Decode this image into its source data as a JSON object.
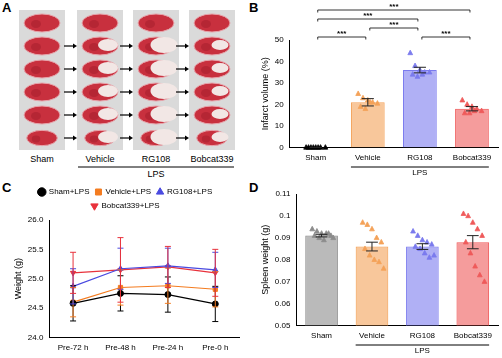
{
  "chart_data": [
    {
      "type": "image",
      "title": "A",
      "categories": [
        "Sham",
        "Vehicle",
        "RG108",
        "Bobcat339"
      ],
      "group_label": {
        "label": "LPS",
        "categories": [
          "Vehicle",
          "RG108",
          "Bobcat339"
        ]
      }
    },
    {
      "type": "bar",
      "title": "B",
      "categories": [
        "Sham",
        "Vehicle",
        "RG108",
        "Bobcat339"
      ],
      "values": [
        0,
        21,
        36,
        18
      ],
      "errors": [
        0,
        1.7,
        1.3,
        1.0
      ],
      "points": [
        [
          0,
          0,
          0,
          0,
          0,
          0,
          0,
          0
        ],
        [
          25,
          23,
          22,
          21,
          20.5,
          19,
          18,
          21
        ],
        [
          44,
          38,
          36,
          35,
          35,
          34,
          33,
          34
        ],
        [
          22,
          20,
          19,
          18,
          17,
          16,
          16,
          17
        ]
      ],
      "colors": [
        "#000000",
        "#f4a259",
        "#7b7bee",
        "#ef5a5a"
      ],
      "marker": "triangle",
      "y_label": "Infarct volume (%)",
      "ylim": [
        0,
        50
      ],
      "yticks": [
        0,
        10,
        20,
        30,
        40,
        50
      ],
      "grid": false,
      "comparisons": [
        {
          "groups": [
            "Sham",
            "Vehicle"
          ],
          "label": "***"
        },
        {
          "groups": [
            "Sham",
            "RG108"
          ],
          "label": "***"
        },
        {
          "groups": [
            "Sham",
            "Bobcat339"
          ],
          "label": "***"
        },
        {
          "groups": [
            "Vehicle",
            "RG108"
          ],
          "label": "***"
        },
        {
          "groups": [
            "RG108",
            "Bobcat339"
          ],
          "label": "***"
        }
      ],
      "group_label": {
        "label": "LPS",
        "categories": [
          "Vehicle",
          "RG108",
          "Bobcat339"
        ]
      }
    },
    {
      "type": "line",
      "title": "C",
      "categories": [
        "Pre-72 h",
        "Pre-48 h",
        "Pre-24 h",
        "Pre-0 h"
      ],
      "series": [
        {
          "name": "Sham+LPS",
          "color": "#000000",
          "marker": "circle",
          "values": [
            24.58,
            24.75,
            24.73,
            24.57
          ],
          "errors": [
            0.3,
            0.3,
            0.3,
            0.3
          ]
        },
        {
          "name": "Vehicle+LPS",
          "color": "#f47c20",
          "marker": "square",
          "values": [
            24.6,
            24.85,
            24.88,
            24.82
          ],
          "errors": [
            0.25,
            0.3,
            0.3,
            0.3
          ]
        },
        {
          "name": "RG108+LPS",
          "color": "#4a4ae0",
          "marker": "triangle",
          "values": [
            24.87,
            25.17,
            25.22,
            25.15
          ],
          "errors": [
            0.3,
            0.35,
            0.3,
            0.3
          ]
        },
        {
          "name": "Bobcat339+LPS",
          "color": "#e8323c",
          "marker": "triangle-down",
          "values": [
            25.1,
            25.15,
            25.2,
            25.1
          ],
          "errors": [
            0.35,
            0.55,
            0.35,
            0.4
          ]
        }
      ],
      "y_label": "Weight (g)",
      "ylim": [
        24,
        26
      ],
      "yticks": [
        {
          "value": 24,
          "label": "24.0"
        },
        24.5,
        {
          "value": 25,
          "label": "25.0"
        },
        25.5,
        {
          "value": 26,
          "label": "26.0"
        }
      ],
      "grid": false,
      "legend": "top"
    },
    {
      "type": "bar",
      "title": "D",
      "categories": [
        "Sham",
        "Vehicle",
        "RG108",
        "Bobcat339"
      ],
      "values": [
        0.091,
        0.086,
        0.086,
        0.088
      ],
      "errors": [
        0.0006,
        0.002,
        0.0013,
        0.003
      ],
      "points": [
        [
          0.094,
          0.093,
          0.092,
          0.092,
          0.091,
          0.091,
          0.09,
          0.089,
          0.092,
          0.09
        ],
        [
          0.097,
          0.096,
          0.094,
          0.09,
          0.088,
          0.085,
          0.082,
          0.08,
          0.079,
          0.076
        ],
        [
          0.093,
          0.091,
          0.089,
          0.088,
          0.087,
          0.086,
          0.085,
          0.083,
          0.081,
          0.082
        ],
        [
          0.101,
          0.1,
          0.097,
          0.094,
          0.091,
          0.088,
          0.083,
          0.077,
          0.073,
          0.07
        ]
      ],
      "colors": [
        "#8c8c8c",
        "#f4a259",
        "#7b7bee",
        "#ef5a5a"
      ],
      "marker": "triangle",
      "y_label": "Spleen weight (g)",
      "ylim": [
        0.05,
        0.11
      ],
      "yticks": [
        0.05,
        0.06,
        0.07,
        0.08,
        0.09,
        0.1,
        0.11
      ],
      "grid": false,
      "group_label": {
        "label": "LPS",
        "categories": [
          "Vehicle",
          "RG108",
          "Bobcat339"
        ]
      }
    }
  ]
}
